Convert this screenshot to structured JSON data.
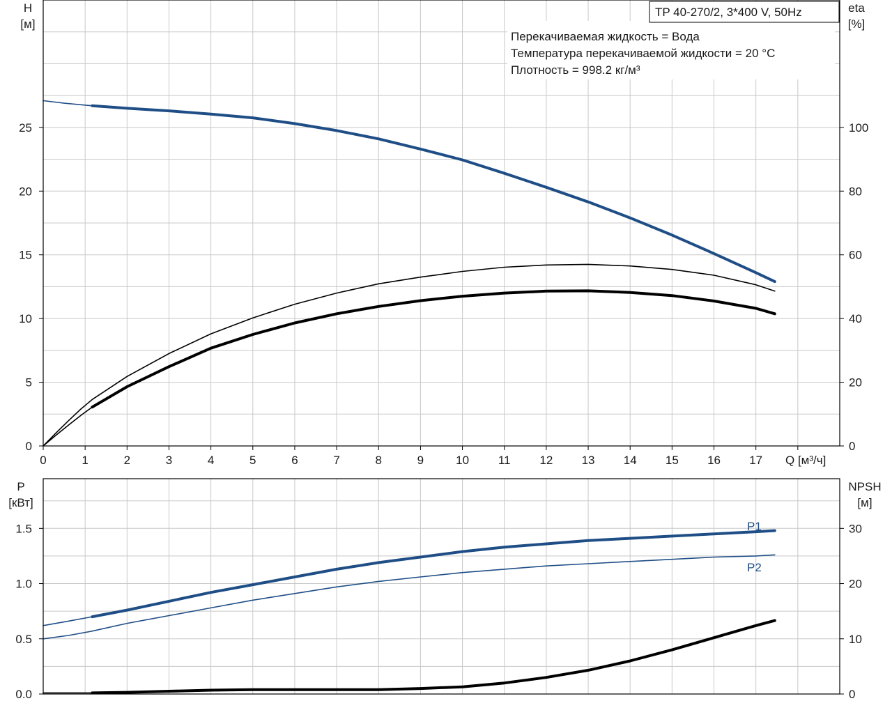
{
  "title_box": "TP 40-270/2, 3*400 V, 50Hz",
  "info_lines": [
    "Перекачиваемая жидкость = Вода",
    "Температура перекачиваемой жидкости = 20 °C",
    "Плотность = 998.2 кг/м³"
  ],
  "top": {
    "left_label": [
      "H",
      "[м]"
    ],
    "right_label": [
      "eta",
      "[%]"
    ],
    "x_label": "Q [м³/ч]"
  },
  "bottom": {
    "left_label": [
      "P",
      "[кВт]"
    ],
    "right_label": [
      "NPSH",
      "[м]"
    ]
  },
  "colors": {
    "head": "#1f4e86",
    "power": "#1f4e86",
    "eta": "#000000",
    "npsh": "#000000",
    "grid": "#c8c8c8"
  },
  "chart_data": [
    {
      "type": "line",
      "title": "",
      "xlabel": "Q [м³/ч]",
      "ylabel": "H [м]",
      "y2label": "eta [%]",
      "xlim": [
        0,
        19
      ],
      "ylim": [
        0,
        35
      ],
      "y2lim": [
        0,
        140
      ],
      "xticks": [
        0,
        1,
        2,
        3,
        4,
        5,
        6,
        7,
        8,
        9,
        10,
        11,
        12,
        13,
        14,
        15,
        16,
        17
      ],
      "xtick_labels": [
        "0",
        "1",
        "2",
        "3",
        "4",
        "5",
        "6",
        "7",
        "8",
        "9",
        "10",
        "11",
        "12",
        "13",
        "14",
        "15",
        "16",
        "17"
      ],
      "yticks": [
        0,
        5,
        10,
        15,
        20,
        25
      ],
      "ytick_labels": [
        "0",
        "5",
        "10",
        "15",
        "20",
        "25"
      ],
      "y2ticks": [
        0,
        20,
        40,
        60,
        80,
        100
      ],
      "y2tick_labels": [
        "0",
        "20",
        "40",
        "60",
        "80",
        "100"
      ],
      "grid": true,
      "series": [
        {
          "key": "head",
          "axis": "y",
          "style": "thick-blue",
          "x": [
            1.17,
            2,
            3,
            4,
            5,
            6,
            7,
            8,
            9,
            10,
            11,
            12,
            13,
            14,
            15,
            16,
            17,
            17.45
          ],
          "y": [
            26.7,
            26.5,
            26.3,
            26.05,
            25.75,
            25.3,
            24.75,
            24.1,
            23.3,
            22.45,
            21.4,
            20.3,
            19.15,
            17.9,
            16.55,
            15.1,
            13.6,
            12.9
          ]
        },
        {
          "key": "head_ext",
          "axis": "y",
          "style": "thin-blue",
          "x": [
            0,
            0.5,
            1.17
          ],
          "y": [
            27.1,
            26.9,
            26.7
          ]
        },
        {
          "key": "eta_thin",
          "axis": "y2",
          "style": "thin-black",
          "x": [
            1.17,
            2,
            3,
            4,
            5,
            6,
            7,
            8,
            9,
            10,
            11,
            12,
            13,
            14,
            15,
            16,
            17,
            17.45
          ],
          "y": [
            14.6,
            21.8,
            29.0,
            35.2,
            40.2,
            44.5,
            48.0,
            50.9,
            53.0,
            54.8,
            56.1,
            56.8,
            57.0,
            56.5,
            55.4,
            53.6,
            50.6,
            48.6
          ]
        },
        {
          "key": "eta_thin_ext",
          "axis": "y2",
          "style": "thin-black",
          "x": [
            0,
            0.3,
            0.6,
            0.9,
            1.17
          ],
          "y": [
            0,
            4.0,
            7.9,
            11.6,
            14.6
          ]
        },
        {
          "key": "eta_thick",
          "axis": "y2",
          "style": "thick-black",
          "x": [
            1.17,
            2,
            3,
            4,
            5,
            6,
            7,
            8,
            9,
            10,
            11,
            12,
            13,
            14,
            15,
            16,
            17,
            17.45
          ],
          "y": [
            12.2,
            18.6,
            24.9,
            30.7,
            35.0,
            38.6,
            41.5,
            43.8,
            45.6,
            47.0,
            48.0,
            48.6,
            48.7,
            48.2,
            47.2,
            45.5,
            43.2,
            41.5
          ]
        },
        {
          "key": "eta_thick_ext",
          "axis": "y2",
          "style": "thin-black",
          "x": [
            0,
            0.3,
            0.6,
            0.9,
            1.17
          ],
          "y": [
            0,
            3.3,
            6.5,
            9.6,
            12.2
          ]
        }
      ]
    },
    {
      "type": "line",
      "title": "",
      "xlabel": "",
      "ylabel": "P [кВт]",
      "y2label": "NPSH [м]",
      "xlim": [
        0,
        19
      ],
      "ylim": [
        0,
        1.95
      ],
      "y2lim": [
        0,
        39
      ],
      "yticks": [
        0.0,
        0.5,
        1.0,
        1.5
      ],
      "ytick_labels": [
        "0.0",
        "0.5",
        "1.0",
        "1.5"
      ],
      "y2ticks": [
        0,
        10,
        20,
        30
      ],
      "y2tick_labels": [
        "0",
        "10",
        "20",
        "30"
      ],
      "grid": true,
      "series_labels": [
        "P1",
        "P2"
      ],
      "series": [
        {
          "key": "P1",
          "name": "P1",
          "axis": "y",
          "style": "thick-blue",
          "x": [
            1.17,
            2,
            3,
            4,
            5,
            6,
            7,
            8,
            9,
            10,
            11,
            12,
            13,
            14,
            15,
            16,
            17,
            17.45
          ],
          "y": [
            0.7,
            0.76,
            0.84,
            0.92,
            0.99,
            1.06,
            1.13,
            1.19,
            1.24,
            1.29,
            1.33,
            1.36,
            1.39,
            1.41,
            1.43,
            1.45,
            1.47,
            1.48
          ]
        },
        {
          "key": "P1_ext",
          "axis": "y",
          "style": "thin-blue",
          "x": [
            0,
            0.6,
            1.17
          ],
          "y": [
            0.62,
            0.66,
            0.7
          ]
        },
        {
          "key": "P2",
          "name": "P2",
          "axis": "y",
          "style": "thin-blue",
          "x": [
            1.17,
            2,
            3,
            4,
            5,
            6,
            7,
            8,
            9,
            10,
            11,
            12,
            13,
            14,
            15,
            16,
            17,
            17.45
          ],
          "y": [
            0.57,
            0.64,
            0.71,
            0.78,
            0.85,
            0.91,
            0.97,
            1.02,
            1.06,
            1.1,
            1.13,
            1.16,
            1.18,
            1.2,
            1.22,
            1.24,
            1.25,
            1.26
          ]
        },
        {
          "key": "P2_ext",
          "axis": "y",
          "style": "thin-blue",
          "x": [
            0,
            0.6,
            1.17
          ],
          "y": [
            0.5,
            0.53,
            0.57
          ]
        },
        {
          "key": "npsh",
          "axis": "y2",
          "style": "thick-black",
          "x": [
            1.17,
            2,
            3,
            4,
            5,
            6,
            7,
            8,
            9,
            10,
            11,
            12,
            13,
            14,
            15,
            16,
            17,
            17.45
          ],
          "y": [
            0.2,
            0.3,
            0.5,
            0.7,
            0.8,
            0.8,
            0.8,
            0.8,
            1.0,
            1.3,
            2.0,
            3.0,
            4.3,
            6.0,
            8.0,
            10.2,
            12.4,
            13.3
          ]
        },
        {
          "key": "npsh_ext",
          "axis": "y2",
          "style": "thin-black",
          "x": [
            0,
            0.6,
            1.17
          ],
          "y": [
            0.2,
            0.2,
            0.2
          ]
        }
      ]
    }
  ]
}
